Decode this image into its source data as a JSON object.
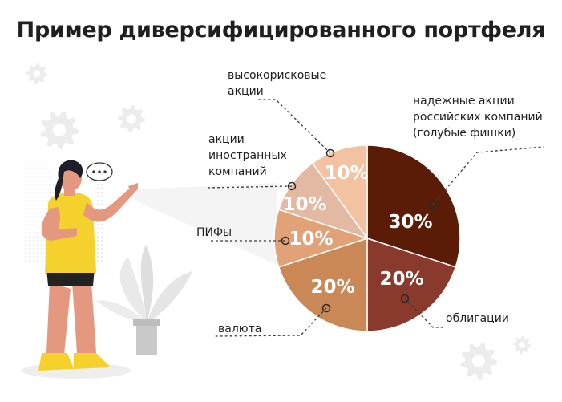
{
  "title": "Пример диверсифицированного портфеля",
  "colors": {
    "blue_chips": "#5a1c07",
    "bonds": "#8a3a2c",
    "currency": "#c98856",
    "funds": "#e2a278",
    "foreign": "#e3b9a4",
    "high_risk": "#f3c2a1",
    "line": "#3a3a3a",
    "accent_shirt": "#f4d12c",
    "skin": "#e59880",
    "gear": "#ececec"
  },
  "illustration": {
    "speech_bubble": "•••"
  },
  "chart_data": {
    "type": "pie",
    "title": "Пример диверсифицированного портфеля",
    "slices": [
      {
        "label_lines": [
          "надежные акции",
          "российских компаний",
          "(голубые фишки)"
        ],
        "value": 30,
        "value_label": "30%",
        "color": "#5a1c07"
      },
      {
        "label_lines": [
          "облигации"
        ],
        "value": 20,
        "value_label": "20%",
        "color": "#8a3a2c"
      },
      {
        "label_lines": [
          "валюта"
        ],
        "value": 20,
        "value_label": "20%",
        "color": "#c98856"
      },
      {
        "label_lines": [
          "ПИФы"
        ],
        "value": 10,
        "value_label": "10%",
        "color": "#e2a278"
      },
      {
        "label_lines": [
          "акции",
          "иностранных",
          "компаний"
        ],
        "value": 10,
        "value_label": "10%",
        "color": "#e3b9a4"
      },
      {
        "label_lines": [
          "высокорисковые",
          "акции"
        ],
        "value": 10,
        "value_label": "10%",
        "color": "#f3c2a1"
      }
    ]
  }
}
